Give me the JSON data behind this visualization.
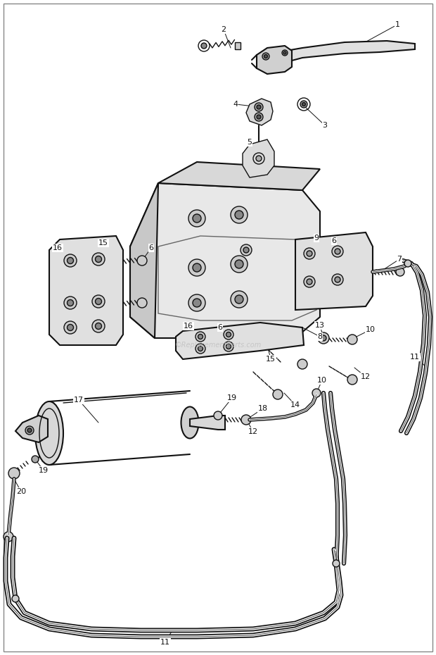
{
  "bg_color": "#ffffff",
  "line_color": "#111111",
  "label_color": "#111111",
  "watermark": "©ReplacementParts.com",
  "fig_width": 6.2,
  "fig_height": 9.3,
  "dpi": 100
}
